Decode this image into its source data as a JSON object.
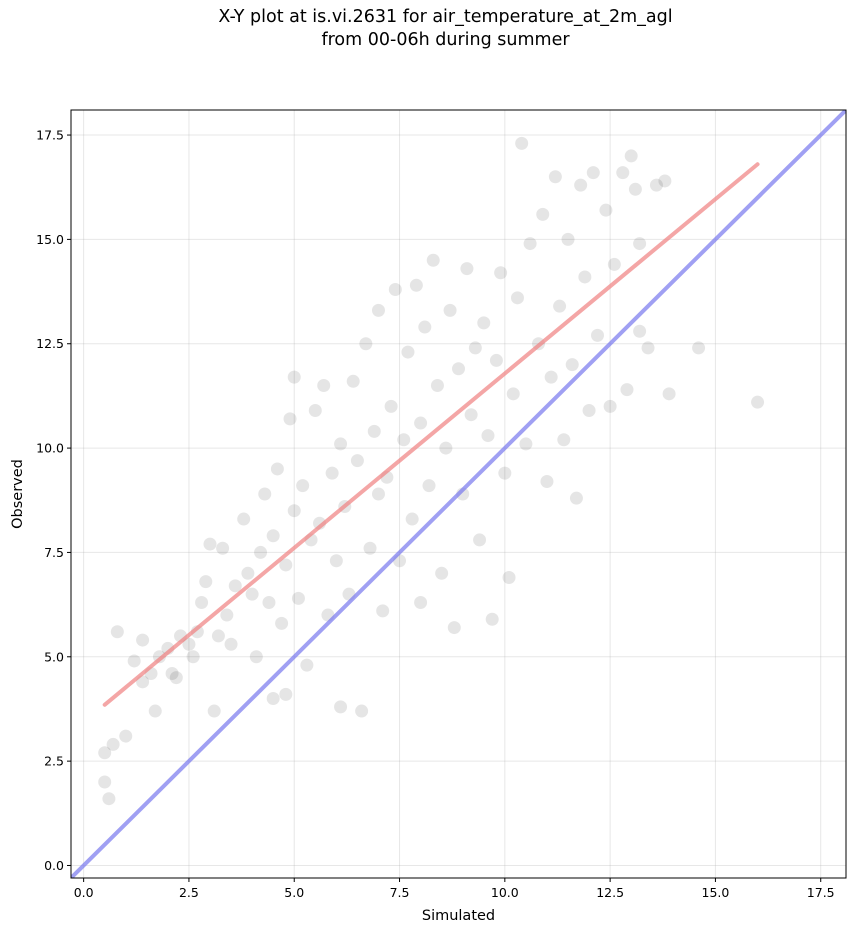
{
  "title": {
    "line1": "X-Y plot at is.vi.2631 for air_temperature_at_2m_agl",
    "line2": "from 00-06h during summer"
  },
  "chart_data": {
    "type": "scatter",
    "title": "X-Y plot at is.vi.2631 for air_temperature_at_2m_agl\nfrom 00-06h during summer",
    "xlabel": "Simulated",
    "ylabel": "Observed",
    "xlim": [
      -0.3,
      18.1
    ],
    "ylim": [
      -0.3,
      18.1
    ],
    "xticks": [
      "0.0",
      "2.5",
      "5.0",
      "7.5",
      "10.0",
      "12.5",
      "15.0",
      "17.5"
    ],
    "yticks": [
      "0.0",
      "2.5",
      "5.0",
      "7.5",
      "10.0",
      "12.5",
      "15.0",
      "17.5"
    ],
    "grid": true,
    "colors": {
      "points": "#000000",
      "fit_line": "#f08080",
      "one_to_one_line": "#7777ee"
    },
    "series": [
      {
        "values": [
          [
            0.5,
            2.0
          ],
          [
            0.5,
            2.7
          ],
          [
            0.6,
            1.6
          ],
          [
            0.7,
            2.9
          ],
          [
            0.8,
            5.6
          ],
          [
            1.0,
            3.1
          ],
          [
            1.2,
            4.9
          ],
          [
            1.4,
            4.4
          ],
          [
            1.4,
            5.4
          ],
          [
            1.6,
            4.6
          ],
          [
            1.7,
            3.7
          ],
          [
            1.8,
            5.0
          ],
          [
            2.0,
            5.2
          ],
          [
            2.1,
            4.6
          ],
          [
            2.2,
            4.5
          ],
          [
            2.3,
            5.5
          ],
          [
            2.5,
            5.3
          ],
          [
            2.6,
            5.0
          ],
          [
            2.7,
            5.6
          ],
          [
            2.8,
            6.3
          ],
          [
            2.9,
            6.8
          ],
          [
            3.0,
            7.7
          ],
          [
            3.1,
            3.7
          ],
          [
            3.2,
            5.5
          ],
          [
            3.3,
            7.6
          ],
          [
            3.4,
            6.0
          ],
          [
            3.5,
            5.3
          ],
          [
            3.6,
            6.7
          ],
          [
            3.8,
            8.3
          ],
          [
            3.9,
            7.0
          ],
          [
            4.0,
            6.5
          ],
          [
            4.1,
            5.0
          ],
          [
            4.2,
            7.5
          ],
          [
            4.3,
            8.9
          ],
          [
            4.4,
            6.3
          ],
          [
            4.5,
            4.0
          ],
          [
            4.5,
            7.9
          ],
          [
            4.6,
            9.5
          ],
          [
            4.7,
            5.8
          ],
          [
            4.8,
            4.1
          ],
          [
            4.8,
            7.2
          ],
          [
            4.9,
            10.7
          ],
          [
            5.0,
            11.7
          ],
          [
            5.0,
            8.5
          ],
          [
            5.1,
            6.4
          ],
          [
            5.2,
            9.1
          ],
          [
            5.3,
            4.8
          ],
          [
            5.4,
            7.8
          ],
          [
            5.5,
            10.9
          ],
          [
            5.6,
            8.2
          ],
          [
            5.7,
            11.5
          ],
          [
            5.8,
            6.0
          ],
          [
            5.9,
            9.4
          ],
          [
            6.0,
            7.3
          ],
          [
            6.1,
            3.8
          ],
          [
            6.1,
            10.1
          ],
          [
            6.2,
            8.6
          ],
          [
            6.3,
            6.5
          ],
          [
            6.4,
            11.6
          ],
          [
            6.5,
            9.7
          ],
          [
            6.6,
            3.7
          ],
          [
            6.7,
            12.5
          ],
          [
            6.8,
            7.6
          ],
          [
            6.9,
            10.4
          ],
          [
            7.0,
            13.3
          ],
          [
            7.0,
            8.9
          ],
          [
            7.1,
            6.1
          ],
          [
            7.2,
            9.3
          ],
          [
            7.3,
            11.0
          ],
          [
            7.4,
            13.8
          ],
          [
            7.5,
            7.3
          ],
          [
            7.6,
            10.2
          ],
          [
            7.7,
            12.3
          ],
          [
            7.8,
            8.3
          ],
          [
            7.9,
            13.9
          ],
          [
            8.0,
            6.3
          ],
          [
            8.0,
            10.6
          ],
          [
            8.1,
            12.9
          ],
          [
            8.2,
            9.1
          ],
          [
            8.3,
            14.5
          ],
          [
            8.4,
            11.5
          ],
          [
            8.5,
            7.0
          ],
          [
            8.6,
            10.0
          ],
          [
            8.7,
            13.3
          ],
          [
            8.8,
            5.7
          ],
          [
            8.9,
            11.9
          ],
          [
            9.0,
            8.9
          ],
          [
            9.1,
            14.3
          ],
          [
            9.2,
            10.8
          ],
          [
            9.3,
            12.4
          ],
          [
            9.4,
            7.8
          ],
          [
            9.5,
            13.0
          ],
          [
            9.6,
            10.3
          ],
          [
            9.7,
            5.9
          ],
          [
            9.8,
            12.1
          ],
          [
            9.9,
            14.2
          ],
          [
            10.0,
            9.4
          ],
          [
            10.1,
            6.9
          ],
          [
            10.2,
            11.3
          ],
          [
            10.3,
            13.6
          ],
          [
            10.4,
            17.3
          ],
          [
            10.5,
            10.1
          ],
          [
            10.6,
            14.9
          ],
          [
            10.8,
            12.5
          ],
          [
            10.9,
            15.6
          ],
          [
            11.0,
            9.2
          ],
          [
            11.1,
            11.7
          ],
          [
            11.2,
            16.5
          ],
          [
            11.3,
            13.4
          ],
          [
            11.4,
            10.2
          ],
          [
            11.5,
            15.0
          ],
          [
            11.6,
            12.0
          ],
          [
            11.7,
            8.8
          ],
          [
            11.8,
            16.3
          ],
          [
            11.9,
            14.1
          ],
          [
            12.0,
            10.9
          ],
          [
            12.1,
            16.6
          ],
          [
            12.2,
            12.7
          ],
          [
            12.4,
            15.7
          ],
          [
            12.5,
            11.0
          ],
          [
            12.6,
            14.4
          ],
          [
            12.8,
            16.6
          ],
          [
            12.9,
            11.4
          ],
          [
            13.0,
            17.0
          ],
          [
            13.1,
            16.2
          ],
          [
            13.2,
            14.9
          ],
          [
            13.2,
            12.8
          ],
          [
            13.4,
            12.4
          ],
          [
            13.6,
            16.3
          ],
          [
            13.8,
            16.4
          ],
          [
            13.9,
            11.3
          ],
          [
            14.6,
            12.4
          ],
          [
            16.0,
            11.1
          ]
        ]
      }
    ],
    "lines": [
      {
        "kind": "fit",
        "x": [
          0.5,
          16.0
        ],
        "y": [
          3.85,
          16.8
        ]
      },
      {
        "kind": "one-to-one",
        "x": [
          -0.3,
          18.1
        ],
        "y": [
          -0.3,
          18.1
        ]
      }
    ]
  }
}
